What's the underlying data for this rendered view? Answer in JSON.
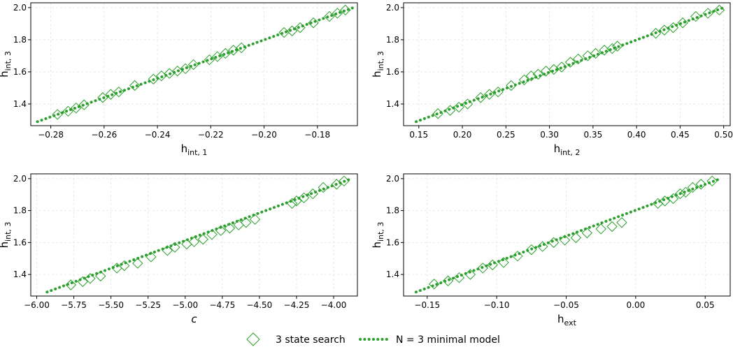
{
  "colors": {
    "series": "#2ca02c",
    "grid": "#e3e3e3",
    "axis": "#000000"
  },
  "legend": {
    "scatter_label": "3 state search",
    "line_label": "N = 3 minimal model",
    "placement": "bottom-center"
  },
  "chart_data": [
    {
      "type": "scatter",
      "xlabel": {
        "main": "h",
        "sub": "int, 1",
        "italic": false
      },
      "ylabel": {
        "main": "h",
        "sub": "int, 3"
      },
      "xlim": [
        -0.2875,
        -0.165
      ],
      "ylim": [
        1.265,
        2.03
      ],
      "xticks": [
        -0.28,
        -0.26,
        -0.24,
        -0.22,
        -0.2,
        -0.18
      ],
      "xtick_labels": [
        "−0.28",
        "−0.26",
        "−0.24",
        "−0.22",
        "−0.20",
        "−0.18"
      ],
      "yticks": [
        1.4,
        1.6,
        1.8,
        2.0
      ],
      "ytick_labels": [
        "1.4",
        "1.6",
        "1.8",
        "2.0"
      ],
      "grid": true,
      "series": [
        {
          "kind": "line",
          "style": "dotted",
          "x": [
            -0.285,
            -0.1665
          ],
          "y": [
            1.29,
            2.0
          ]
        },
        {
          "kind": "scatter",
          "marker": "diamond",
          "x": [
            -0.2775,
            -0.2735,
            -0.2705,
            -0.2675,
            -0.2605,
            -0.2575,
            -0.2545,
            -0.2485,
            -0.2415,
            -0.2385,
            -0.2355,
            -0.2325,
            -0.2295,
            -0.2265,
            -0.2205,
            -0.2175,
            -0.2145,
            -0.2115,
            -0.2085,
            -0.1925,
            -0.1895,
            -0.1865,
            -0.1815,
            -0.1755,
            -0.1725,
            -0.1695
          ],
          "y": [
            1.335,
            1.355,
            1.375,
            1.395,
            1.44,
            1.46,
            1.475,
            1.515,
            1.555,
            1.575,
            1.59,
            1.605,
            1.62,
            1.645,
            1.675,
            1.695,
            1.715,
            1.735,
            1.75,
            1.845,
            1.855,
            1.875,
            1.905,
            1.945,
            1.965,
            1.985
          ]
        }
      ]
    },
    {
      "type": "scatter",
      "xlabel": {
        "main": "h",
        "sub": "int, 2",
        "italic": false
      },
      "ylabel": {
        "main": "h",
        "sub": "int, 3"
      },
      "xlim": [
        0.1325,
        0.5075
      ],
      "ylim": [
        1.265,
        2.03
      ],
      "xticks": [
        0.15,
        0.2,
        0.25,
        0.3,
        0.35,
        0.4,
        0.45,
        0.5
      ],
      "xtick_labels": [
        "0.15",
        "0.20",
        "0.25",
        "0.30",
        "0.35",
        "0.40",
        "0.45",
        "0.50"
      ],
      "yticks": [
        1.4,
        1.6,
        1.8,
        2.0
      ],
      "ytick_labels": [
        "1.4",
        "1.6",
        "1.8",
        "2.0"
      ],
      "grid": true,
      "series": [
        {
          "kind": "line",
          "style": "dotted",
          "x": [
            0.147,
            0.5
          ],
          "y": [
            1.29,
            2.0
          ]
        },
        {
          "kind": "scatter",
          "marker": "diamond",
          "x": [
            0.172,
            0.186,
            0.196,
            0.206,
            0.221,
            0.231,
            0.241,
            0.256,
            0.271,
            0.279,
            0.287,
            0.296,
            0.305,
            0.314,
            0.324,
            0.333,
            0.344,
            0.353,
            0.363,
            0.372,
            0.378,
            0.422,
            0.432,
            0.442,
            0.453,
            0.468,
            0.482,
            0.495
          ],
          "y": [
            1.34,
            1.36,
            1.38,
            1.4,
            1.44,
            1.46,
            1.475,
            1.515,
            1.55,
            1.575,
            1.585,
            1.605,
            1.615,
            1.63,
            1.66,
            1.68,
            1.7,
            1.715,
            1.735,
            1.745,
            1.76,
            1.84,
            1.86,
            1.875,
            1.905,
            1.945,
            1.965,
            1.985
          ]
        }
      ]
    },
    {
      "type": "scatter",
      "xlabel": {
        "main": "c",
        "sub": "",
        "italic": true
      },
      "ylabel": {
        "main": "h",
        "sub": "int, 3"
      },
      "xlim": [
        -6.04,
        -3.84
      ],
      "ylim": [
        1.265,
        2.03
      ],
      "xticks": [
        -6.0,
        -5.75,
        -5.5,
        -5.25,
        -5.0,
        -4.75,
        -4.5,
        -4.25,
        -4.0
      ],
      "xtick_labels": [
        "−6.00",
        "−5.75",
        "−5.50",
        "−5.25",
        "−5.00",
        "−4.75",
        "−4.50",
        "−4.25",
        "−4.00"
      ],
      "yticks": [
        1.4,
        1.6,
        1.8,
        2.0
      ],
      "ytick_labels": [
        "1.4",
        "1.6",
        "1.8",
        "2.0"
      ],
      "grid": true,
      "series": [
        {
          "kind": "line",
          "style": "dotted",
          "x": [
            -5.93,
            -3.88
          ],
          "y": [
            1.29,
            2.0
          ]
        },
        {
          "kind": "scatter",
          "marker": "diamond",
          "x": [
            -5.77,
            -5.69,
            -5.64,
            -5.57,
            -5.46,
            -5.41,
            -5.32,
            -5.23,
            -5.12,
            -5.07,
            -4.99,
            -4.94,
            -4.88,
            -4.82,
            -4.76,
            -4.7,
            -4.64,
            -4.59,
            -4.53,
            -4.28,
            -4.25,
            -4.2,
            -4.14,
            -4.07,
            -3.98,
            -3.93
          ],
          "y": [
            1.335,
            1.355,
            1.375,
            1.39,
            1.44,
            1.455,
            1.47,
            1.51,
            1.55,
            1.57,
            1.59,
            1.605,
            1.62,
            1.65,
            1.675,
            1.69,
            1.71,
            1.725,
            1.745,
            1.845,
            1.86,
            1.88,
            1.905,
            1.945,
            1.965,
            1.985
          ]
        }
      ]
    },
    {
      "type": "scatter",
      "xlabel": {
        "main": "h",
        "sub": "ext",
        "italic": false
      },
      "ylabel": {
        "main": "h",
        "sub": "int, 3"
      },
      "xlim": [
        -0.167,
        0.068
      ],
      "ylim": [
        1.265,
        2.03
      ],
      "xticks": [
        -0.15,
        -0.1,
        -0.05,
        0.0,
        0.05
      ],
      "xtick_labels": [
        "−0.15",
        "−0.10",
        "−0.05",
        "0.00",
        "0.05"
      ],
      "yticks": [
        1.4,
        1.6,
        1.8,
        2.0
      ],
      "ytick_labels": [
        "1.4",
        "1.6",
        "1.8",
        "2.0"
      ],
      "grid": true,
      "series": [
        {
          "kind": "line",
          "style": "dotted",
          "x": [
            -0.158,
            0.061
          ],
          "y": [
            1.29,
            2.0
          ]
        },
        {
          "kind": "scatter",
          "marker": "diamond",
          "x": [
            -0.145,
            -0.135,
            -0.127,
            -0.119,
            -0.11,
            -0.103,
            -0.095,
            -0.085,
            -0.075,
            -0.067,
            -0.059,
            -0.051,
            -0.043,
            -0.035,
            -0.025,
            -0.017,
            -0.01,
            0.016,
            0.021,
            0.027,
            0.032,
            0.036,
            0.041,
            0.047,
            0.055
          ],
          "y": [
            1.34,
            1.36,
            1.38,
            1.4,
            1.44,
            1.46,
            1.475,
            1.515,
            1.555,
            1.575,
            1.6,
            1.615,
            1.63,
            1.66,
            1.685,
            1.7,
            1.725,
            1.845,
            1.86,
            1.875,
            1.905,
            1.915,
            1.945,
            1.965,
            1.985
          ]
        }
      ]
    }
  ]
}
